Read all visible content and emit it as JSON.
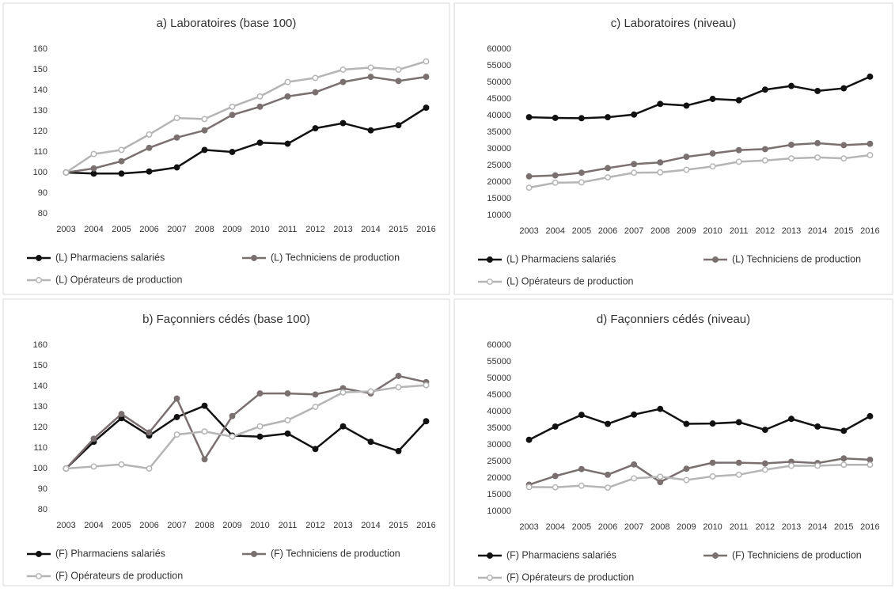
{
  "chart_data": [
    {
      "type": "line",
      "title": "a) Laboratoires (base 100)",
      "categories": [
        "2003",
        "2004",
        "2005",
        "2006",
        "2007",
        "2008",
        "2009",
        "2010",
        "2011",
        "2012",
        "2013",
        "2014",
        "2015",
        "2016"
      ],
      "ylim": [
        80,
        160
      ],
      "yticks": [
        80,
        90,
        100,
        110,
        120,
        130,
        140,
        150,
        160
      ],
      "series": [
        {
          "name": "(L) Pharmaciens salariés",
          "color": "#111111",
          "marker_fill": "#111111",
          "values": [
            100,
            99.5,
            99.5,
            100.5,
            102.5,
            111,
            110,
            114.5,
            114,
            121.5,
            124,
            120.5,
            123,
            131.5
          ]
        },
        {
          "name": "(L) Techniciens de production",
          "color": "#7a7070",
          "marker_fill": "#7a7070",
          "values": [
            100,
            102,
            105.5,
            112,
            117,
            120.5,
            128,
            132,
            137,
            139,
            144,
            146.5,
            144.5,
            146.5
          ]
        },
        {
          "name": "(L) Opérateurs de production",
          "color": "#b5b5b5",
          "marker_fill": "#ffffff",
          "values": [
            100,
            109,
            111,
            118.5,
            126.5,
            126,
            132,
            137,
            144,
            146,
            150,
            151,
            150,
            154
          ]
        }
      ]
    },
    {
      "type": "line",
      "title": "c) Laboratoires (niveau)",
      "categories": [
        "2003",
        "2004",
        "2005",
        "2006",
        "2007",
        "2008",
        "2009",
        "2010",
        "2011",
        "2012",
        "2013",
        "2014",
        "2015",
        "2016"
      ],
      "ylim": [
        10000,
        60000
      ],
      "yticks": [
        10000,
        15000,
        20000,
        25000,
        30000,
        35000,
        40000,
        45000,
        50000,
        55000,
        60000
      ],
      "series": [
        {
          "name": "(L) Pharmaciens salariés",
          "color": "#111111",
          "marker_fill": "#111111",
          "values": [
            39500,
            39300,
            39200,
            39500,
            40300,
            43500,
            43000,
            45000,
            44600,
            47800,
            48900,
            47400,
            48200,
            51700
          ]
        },
        {
          "name": "(L) Techniciens de production",
          "color": "#7a7070",
          "marker_fill": "#7a7070",
          "values": [
            21700,
            22000,
            22800,
            24200,
            25400,
            25900,
            27600,
            28600,
            29600,
            29900,
            31200,
            31700,
            31100,
            31500
          ]
        },
        {
          "name": "(L) Opérateurs de production",
          "color": "#b5b5b5",
          "marker_fill": "#ffffff",
          "values": [
            18300,
            19800,
            19900,
            21400,
            22800,
            22900,
            23700,
            24700,
            26100,
            26500,
            27100,
            27400,
            27100,
            28100
          ]
        }
      ]
    },
    {
      "type": "line",
      "title": "b) Façonniers cédés (base 100)",
      "categories": [
        "2003",
        "2004",
        "2005",
        "2006",
        "2007",
        "2008",
        "2009",
        "2010",
        "2011",
        "2012",
        "2013",
        "2014",
        "2015",
        "2016"
      ],
      "ylim": [
        80,
        160
      ],
      "yticks": [
        80,
        90,
        100,
        110,
        120,
        130,
        140,
        150,
        160
      ],
      "series": [
        {
          "name": "(F) Pharmaciens salariés",
          "color": "#111111",
          "marker_fill": "#111111",
          "values": [
            100,
            113,
            124.5,
            116,
            125,
            130.5,
            116,
            115.5,
            117,
            109.5,
            120.5,
            113,
            108.5,
            123
          ]
        },
        {
          "name": "(F) Techniciens de production",
          "color": "#7a7070",
          "marker_fill": "#7a7070",
          "values": [
            100,
            114.5,
            126.5,
            117.5,
            134,
            104.5,
            125.5,
            136.5,
            136.5,
            136,
            139,
            136.5,
            145,
            142
          ]
        },
        {
          "name": "(F) Opérateurs de production",
          "color": "#b5b5b5",
          "marker_fill": "#ffffff",
          "values": [
            100,
            101,
            102,
            100,
            116.5,
            118,
            115.5,
            120.5,
            123.5,
            130,
            137,
            137.5,
            139.5,
            140.5
          ]
        }
      ]
    },
    {
      "type": "line",
      "title": "d) Façonniers cédés (niveau)",
      "categories": [
        "2003",
        "2004",
        "2005",
        "2006",
        "2007",
        "2008",
        "2009",
        "2010",
        "2011",
        "2012",
        "2013",
        "2014",
        "2015",
        "2016"
      ],
      "ylim": [
        10000,
        60000
      ],
      "yticks": [
        10000,
        15000,
        20000,
        25000,
        30000,
        35000,
        40000,
        45000,
        50000,
        55000,
        60000
      ],
      "series": [
        {
          "name": "(F) Pharmaciens salariés",
          "color": "#111111",
          "marker_fill": "#111111",
          "values": [
            31500,
            35500,
            39000,
            36300,
            39100,
            40800,
            36300,
            36400,
            36800,
            34500,
            37800,
            35500,
            34200,
            38600
          ]
        },
        {
          "name": "(F) Techniciens de production",
          "color": "#7a7070",
          "marker_fill": "#7a7070",
          "values": [
            18000,
            20600,
            22700,
            21000,
            24100,
            18800,
            22800,
            24600,
            24600,
            24400,
            24900,
            24500,
            25900,
            25500
          ]
        },
        {
          "name": "(F) Opérateurs de production",
          "color": "#b5b5b5",
          "marker_fill": "#ffffff",
          "values": [
            17300,
            17200,
            17700,
            17100,
            19900,
            20400,
            19400,
            20500,
            21000,
            22500,
            23700,
            23700,
            24000,
            24000
          ]
        }
      ]
    }
  ]
}
